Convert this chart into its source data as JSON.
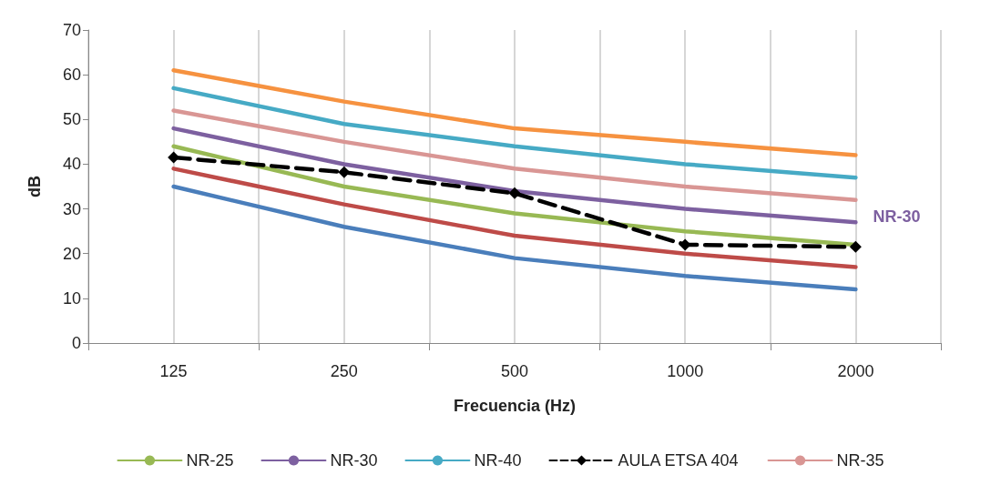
{
  "chart_data": {
    "type": "line",
    "xlabel": "Frecuencia (Hz)",
    "ylabel": "dB",
    "categories": [
      "125",
      "250",
      "500",
      "1000",
      "2000"
    ],
    "ylim": [
      0,
      70
    ],
    "yticks": [
      0,
      10,
      20,
      30,
      40,
      50,
      60,
      70
    ],
    "grid": "x",
    "legend": "bottom",
    "marker": "none",
    "line_style": "solid",
    "series": [
      {
        "color": "#4a7ebb",
        "values": [
          35,
          26,
          19,
          15,
          12
        ]
      },
      {
        "color": "#be4b48",
        "values": [
          39,
          31,
          24,
          20,
          17
        ]
      },
      {
        "name": "NR-25",
        "color": "#98b954",
        "values": [
          44,
          35,
          29,
          25,
          22
        ]
      },
      {
        "name": "NR-30",
        "color": "#7d60a0",
        "values": [
          48,
          40,
          34,
          30,
          27
        ]
      },
      {
        "name": "NR-40",
        "color": "#46aac5",
        "values": [
          57,
          49,
          44,
          40,
          37
        ]
      },
      {
        "name": "AULA ETSA 404",
        "color": "#000000",
        "values": [
          41.5,
          38.2,
          33.5,
          22,
          21.5
        ],
        "marker": "diamond",
        "line_style": "dashed"
      },
      {
        "name": "NR-35",
        "color": "#d99694",
        "values": [
          52,
          45,
          39,
          35,
          32
        ]
      },
      {
        "color": "#f69240",
        "values": [
          61,
          54,
          48,
          45,
          42
        ]
      }
    ],
    "annotations": [
      {
        "text": "NR-30",
        "x": "2000",
        "y": 27
      }
    ]
  }
}
